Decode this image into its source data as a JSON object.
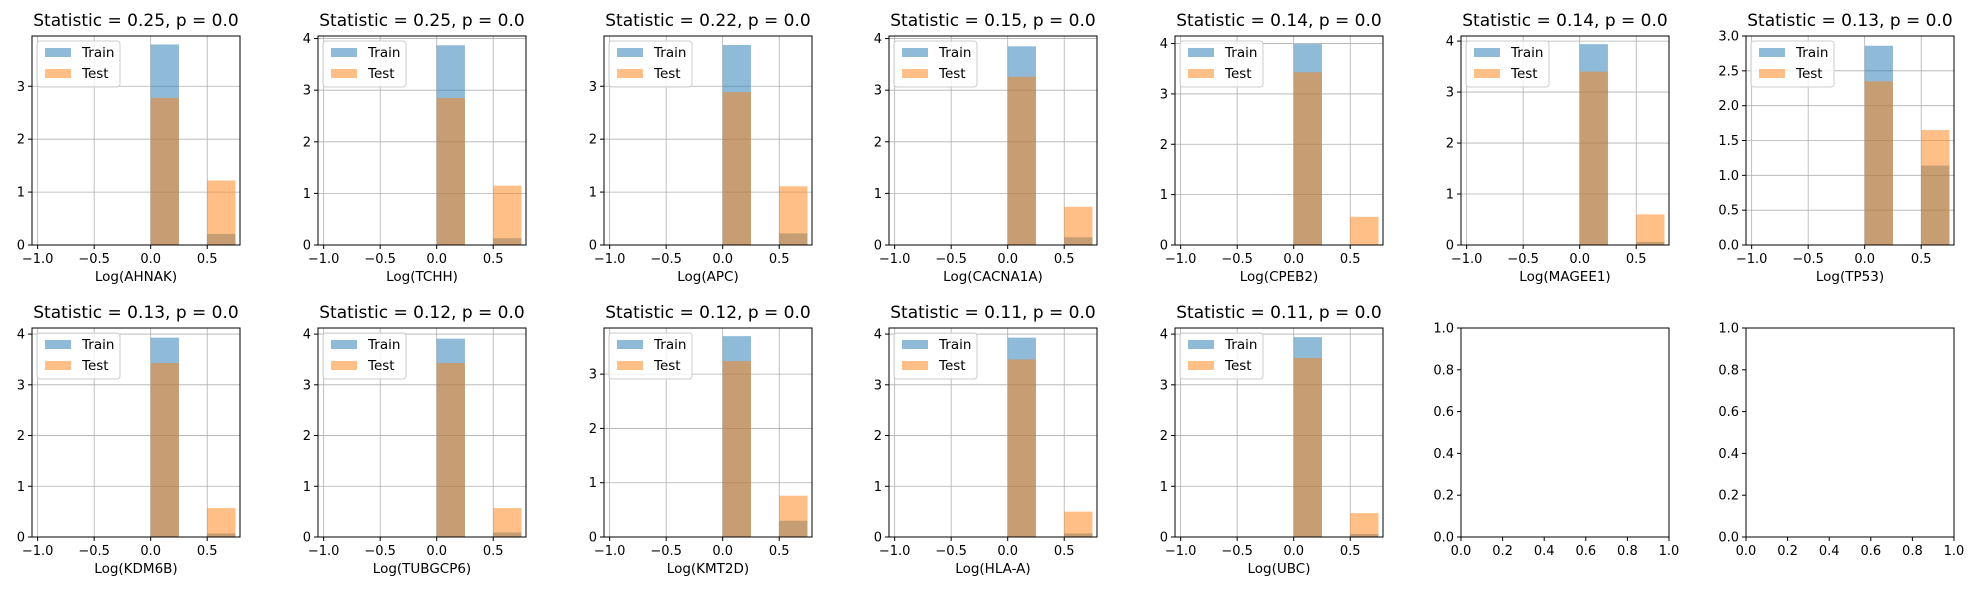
{
  "chart_data": [
    {
      "type": "bar",
      "title": "Statistic = 0.25, p = 0.0",
      "xlabel": "Log(AHNAK)",
      "xlim": [
        -1.05,
        0.79
      ],
      "ylim": [
        0,
        3.95
      ],
      "yticks": [
        0,
        1,
        2,
        3
      ],
      "xticks": [
        -1.0,
        -0.5,
        0.0,
        0.5
      ],
      "grid": true,
      "legend": "top-left",
      "series": [
        {
          "name": "Train",
          "color": "#1f77b4",
          "bins": [
            [
              0.0,
              0.25,
              3.79
            ],
            [
              0.5,
              0.75,
              0.21
            ]
          ]
        },
        {
          "name": "Test",
          "color": "#ff7f0e",
          "bins": [
            [
              0.0,
              0.25,
              2.78
            ],
            [
              0.5,
              0.75,
              1.22
            ]
          ]
        }
      ]
    },
    {
      "type": "bar",
      "title": "Statistic = 0.25, p = 0.0",
      "xlabel": "Log(TCHH)",
      "xlim": [
        -1.05,
        0.79
      ],
      "ylim": [
        0,
        4.05
      ],
      "yticks": [
        0,
        1,
        2,
        3,
        4
      ],
      "xticks": [
        -1.0,
        -0.5,
        0.0,
        0.5
      ],
      "grid": true,
      "legend": "top-left",
      "series": [
        {
          "name": "Train",
          "color": "#1f77b4",
          "bins": [
            [
              0.0,
              0.25,
              3.87
            ],
            [
              0.5,
              0.75,
              0.13
            ]
          ]
        },
        {
          "name": "Test",
          "color": "#ff7f0e",
          "bins": [
            [
              0.0,
              0.25,
              2.85
            ],
            [
              0.5,
              0.75,
              1.15
            ]
          ]
        }
      ]
    },
    {
      "type": "bar",
      "title": "Statistic = 0.22, p = 0.0",
      "xlabel": "Log(APC)",
      "xlim": [
        -1.05,
        0.79
      ],
      "ylim": [
        0,
        3.95
      ],
      "yticks": [
        0,
        1,
        2,
        3
      ],
      "xticks": [
        -1.0,
        -0.5,
        0.0,
        0.5
      ],
      "grid": true,
      "legend": "top-left",
      "series": [
        {
          "name": "Train",
          "color": "#1f77b4",
          "bins": [
            [
              0.0,
              0.25,
              3.78
            ],
            [
              0.5,
              0.75,
              0.22
            ]
          ]
        },
        {
          "name": "Test",
          "color": "#ff7f0e",
          "bins": [
            [
              0.0,
              0.25,
              2.89
            ],
            [
              0.5,
              0.75,
              1.11
            ]
          ]
        }
      ]
    },
    {
      "type": "bar",
      "title": "Statistic = 0.15, p = 0.0",
      "xlabel": "Log(CACNA1A)",
      "xlim": [
        -1.05,
        0.79
      ],
      "ylim": [
        0,
        4.05
      ],
      "yticks": [
        0,
        1,
        2,
        3,
        4
      ],
      "xticks": [
        -1.0,
        -0.5,
        0.0,
        0.5
      ],
      "grid": true,
      "legend": "top-left",
      "series": [
        {
          "name": "Train",
          "color": "#1f77b4",
          "bins": [
            [
              0.0,
              0.25,
              3.85
            ],
            [
              0.5,
              0.75,
              0.15
            ]
          ]
        },
        {
          "name": "Test",
          "color": "#ff7f0e",
          "bins": [
            [
              0.0,
              0.25,
              3.26
            ],
            [
              0.5,
              0.75,
              0.74
            ]
          ]
        }
      ]
    },
    {
      "type": "bar",
      "title": "Statistic = 0.14, p = 0.0",
      "xlabel": "Log(CPEB2)",
      "xlim": [
        -1.05,
        0.79
      ],
      "ylim": [
        0,
        4.15
      ],
      "yticks": [
        0,
        1,
        2,
        3,
        4
      ],
      "xticks": [
        -1.0,
        -0.5,
        0.0,
        0.5
      ],
      "grid": true,
      "legend": "top-left",
      "series": [
        {
          "name": "Train",
          "color": "#1f77b4",
          "bins": [
            [
              0.0,
              0.25,
              3.99
            ]
          ]
        },
        {
          "name": "Test",
          "color": "#ff7f0e",
          "bins": [
            [
              0.0,
              0.25,
              3.43
            ],
            [
              0.5,
              0.75,
              0.56
            ]
          ]
        }
      ]
    },
    {
      "type": "bar",
      "title": "Statistic = 0.14, p = 0.0",
      "xlabel": "Log(MAGEE1)",
      "xlim": [
        -1.05,
        0.79
      ],
      "ylim": [
        0,
        4.1
      ],
      "yticks": [
        0,
        1,
        2,
        3,
        4
      ],
      "xticks": [
        -1.0,
        -0.5,
        0.0,
        0.5
      ],
      "grid": true,
      "legend": "top-left",
      "series": [
        {
          "name": "Train",
          "color": "#1f77b4",
          "bins": [
            [
              0.0,
              0.25,
              3.94
            ],
            [
              0.5,
              0.75,
              0.06
            ]
          ]
        },
        {
          "name": "Test",
          "color": "#ff7f0e",
          "bins": [
            [
              0.0,
              0.25,
              3.4
            ],
            [
              0.5,
              0.75,
              0.6
            ]
          ]
        }
      ]
    },
    {
      "type": "bar",
      "title": "Statistic = 0.13, p = 0.0",
      "xlabel": "Log(TP53)",
      "xlim": [
        -1.05,
        0.79
      ],
      "ylim": [
        0,
        3.0
      ],
      "yticks": [
        0.0,
        0.5,
        1.0,
        1.5,
        2.0,
        2.5,
        3.0
      ],
      "xticks": [
        -1.0,
        -0.5,
        0.0,
        0.5
      ],
      "grid": true,
      "legend": "top-left",
      "series": [
        {
          "name": "Train",
          "color": "#1f77b4",
          "bins": [
            [
              0.0,
              0.25,
              2.86
            ],
            [
              0.5,
              0.75,
              1.14
            ]
          ]
        },
        {
          "name": "Test",
          "color": "#ff7f0e",
          "bins": [
            [
              0.0,
              0.25,
              2.35
            ],
            [
              0.5,
              0.75,
              1.65
            ]
          ]
        }
      ]
    },
    {
      "type": "bar",
      "title": "Statistic = 0.13, p = 0.0",
      "xlabel": "Log(KDM6B)",
      "xlim": [
        -1.05,
        0.79
      ],
      "ylim": [
        0,
        4.12
      ],
      "yticks": [
        0,
        1,
        2,
        3,
        4
      ],
      "xticks": [
        -1.0,
        -0.5,
        0.0,
        0.5
      ],
      "grid": true,
      "legend": "top-left",
      "series": [
        {
          "name": "Train",
          "color": "#1f77b4",
          "bins": [
            [
              0.0,
              0.25,
              3.93
            ],
            [
              0.5,
              0.75,
              0.07
            ]
          ]
        },
        {
          "name": "Test",
          "color": "#ff7f0e",
          "bins": [
            [
              0.0,
              0.25,
              3.43
            ],
            [
              0.5,
              0.75,
              0.57
            ]
          ]
        }
      ]
    },
    {
      "type": "bar",
      "title": "Statistic = 0.12, p = 0.0",
      "xlabel": "Log(TUBGCP6)",
      "xlim": [
        -1.05,
        0.79
      ],
      "ylim": [
        0,
        4.12
      ],
      "yticks": [
        0,
        1,
        2,
        3,
        4
      ],
      "xticks": [
        -1.0,
        -0.5,
        0.0,
        0.5
      ],
      "grid": true,
      "legend": "top-left",
      "series": [
        {
          "name": "Train",
          "color": "#1f77b4",
          "bins": [
            [
              0.0,
              0.25,
              3.91
            ],
            [
              0.5,
              0.75,
              0.09
            ]
          ]
        },
        {
          "name": "Test",
          "color": "#ff7f0e",
          "bins": [
            [
              0.0,
              0.25,
              3.43
            ],
            [
              0.5,
              0.75,
              0.57
            ]
          ]
        }
      ]
    },
    {
      "type": "bar",
      "title": "Statistic = 0.12, p = 0.0",
      "xlabel": "Log(KMT2D)",
      "xlim": [
        -1.05,
        0.79
      ],
      "ylim": [
        0,
        3.85
      ],
      "yticks": [
        0,
        1,
        2,
        3
      ],
      "xticks": [
        -1.0,
        -0.5,
        0.0,
        0.5
      ],
      "grid": true,
      "legend": "top-left",
      "series": [
        {
          "name": "Train",
          "color": "#1f77b4",
          "bins": [
            [
              0.0,
              0.25,
              3.7
            ],
            [
              0.5,
              0.75,
              0.3
            ]
          ]
        },
        {
          "name": "Test",
          "color": "#ff7f0e",
          "bins": [
            [
              0.0,
              0.25,
              3.24
            ],
            [
              0.5,
              0.75,
              0.76
            ]
          ]
        }
      ]
    },
    {
      "type": "bar",
      "title": "Statistic = 0.11, p = 0.0",
      "xlabel": "Log(HLA-A)",
      "xlim": [
        -1.05,
        0.79
      ],
      "ylim": [
        0,
        4.12
      ],
      "yticks": [
        0,
        1,
        2,
        3,
        4
      ],
      "xticks": [
        -1.0,
        -0.5,
        0.0,
        0.5
      ],
      "grid": true,
      "legend": "top-left",
      "series": [
        {
          "name": "Train",
          "color": "#1f77b4",
          "bins": [
            [
              0.0,
              0.25,
              3.93
            ],
            [
              0.5,
              0.75,
              0.07
            ]
          ]
        },
        {
          "name": "Test",
          "color": "#ff7f0e",
          "bins": [
            [
              0.0,
              0.25,
              3.5
            ],
            [
              0.5,
              0.75,
              0.5
            ]
          ]
        }
      ]
    },
    {
      "type": "bar",
      "title": "Statistic = 0.11, p = 0.0",
      "xlabel": "Log(UBC)",
      "xlim": [
        -1.05,
        0.79
      ],
      "ylim": [
        0,
        4.12
      ],
      "yticks": [
        0,
        1,
        2,
        3,
        4
      ],
      "xticks": [
        -1.0,
        -0.5,
        0.0,
        0.5
      ],
      "grid": true,
      "legend": "top-left",
      "series": [
        {
          "name": "Train",
          "color": "#1f77b4",
          "bins": [
            [
              0.0,
              0.25,
              3.94
            ],
            [
              0.5,
              0.75,
              0.06
            ]
          ]
        },
        {
          "name": "Test",
          "color": "#ff7f0e",
          "bins": [
            [
              0.0,
              0.25,
              3.53
            ],
            [
              0.5,
              0.75,
              0.47
            ]
          ]
        }
      ]
    },
    {
      "type": "empty",
      "title": "",
      "xlabel": "",
      "xlim": [
        0,
        1
      ],
      "ylim": [
        0,
        1
      ],
      "xticks": [
        0.0,
        0.2,
        0.4,
        0.6,
        0.8,
        1.0
      ],
      "yticks": [
        0.0,
        0.2,
        0.4,
        0.6,
        0.8,
        1.0
      ],
      "grid": false
    },
    {
      "type": "empty",
      "title": "",
      "xlabel": "",
      "xlim": [
        0,
        1
      ],
      "ylim": [
        0,
        1
      ],
      "xticks": [
        0.0,
        0.2,
        0.4,
        0.6,
        0.8,
        1.0
      ],
      "yticks": [
        0.0,
        0.2,
        0.4,
        0.6,
        0.8,
        1.0
      ],
      "grid": false
    }
  ]
}
